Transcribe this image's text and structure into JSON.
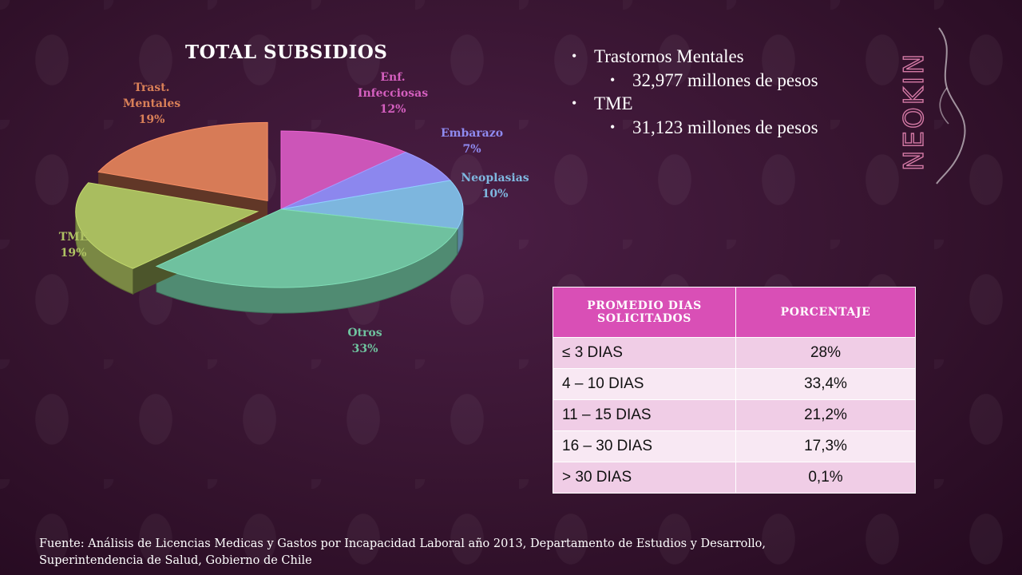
{
  "slide": {
    "title": "TOTAL SUBSIDIOS",
    "brand": "NEOKIN",
    "bullets": [
      {
        "text": "Trastornos Mentales",
        "sub": "32,977 millones de pesos"
      },
      {
        "text": "TME",
        "sub": "31,123 millones de pesos"
      }
    ],
    "source_line1": "Fuente: Análisis de Licencias Medicas y Gastos por Incapacidad Laboral año 2013, Departamento de Estudios y Desarrollo,",
    "source_line2": "Superintendencia de Salud, Gobierno de Chile"
  },
  "table": {
    "headers": [
      "PROMEDIO DIAS SOLICITADOS",
      "PORCENTAJE"
    ],
    "rows": [
      {
        "label": "≤ 3 DIAS",
        "value": "28%"
      },
      {
        "label": "4 – 10 DIAS",
        "value": "33,4%"
      },
      {
        "label": "11 – 15 DIAS",
        "value": "21,2%"
      },
      {
        "label": "16 – 30 DIAS",
        "value": "17,3%"
      },
      {
        "label": "> 30 DIAS",
        "value": "0,1%"
      }
    ]
  },
  "chart_data": {
    "type": "pie",
    "title": "TOTAL SUBSIDIOS",
    "slices": [
      {
        "label": "Enf. Infecciosas",
        "value": 12,
        "color": "#cc55b8",
        "label_color": "#d45fbf"
      },
      {
        "label": "Embarazo",
        "value": 7,
        "color": "#8c87ee",
        "label_color": "#8f8af0"
      },
      {
        "label": "Neoplasias",
        "value": 10,
        "color": "#7db6de",
        "label_color": "#7fb8e0"
      },
      {
        "label": "Otros",
        "value": 33,
        "color": "#6fc19f",
        "label_color": "#6fc39f"
      },
      {
        "label": "TME",
        "value": 19,
        "color": "#a9bd5f",
        "label_color": "#aec163"
      },
      {
        "label": "Trast. Mentales",
        "value": 19,
        "color": "#d77b57",
        "label_color": "#d98058"
      }
    ],
    "unit": "%",
    "exploded": [
      "TME",
      "Trast. Mentales"
    ],
    "style": "3D"
  }
}
